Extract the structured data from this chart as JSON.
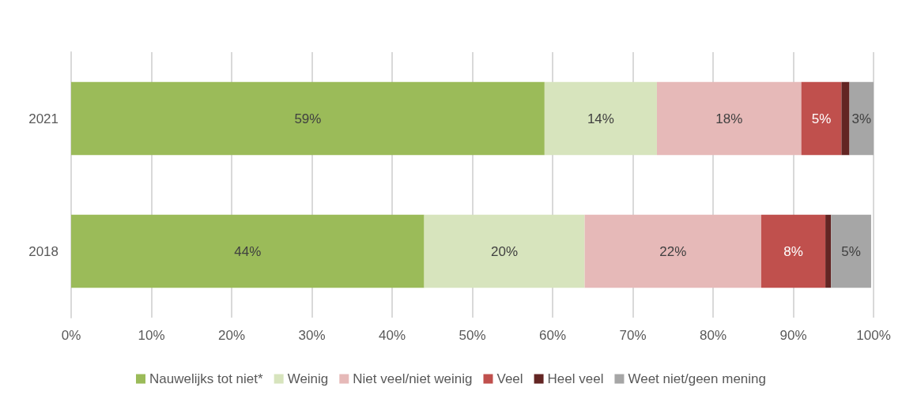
{
  "chart_data": {
    "type": "bar",
    "orientation": "horizontal",
    "stacked": true,
    "categories": [
      "2021",
      "2018"
    ],
    "series": [
      {
        "name": "Nauwelijks tot niet*",
        "color": "#9bbb59",
        "values": [
          59,
          44
        ],
        "value_labels": [
          "59%",
          "44%"
        ]
      },
      {
        "name": "Weinig",
        "color": "#d7e4bd",
        "values": [
          14,
          20
        ],
        "value_labels": [
          "14%",
          "20%"
        ]
      },
      {
        "name": "Niet veel/niet weinig",
        "color": "#e6b9b8",
        "values": [
          18,
          22
        ],
        "value_labels": [
          "18%",
          "22%"
        ]
      },
      {
        "name": "Veel",
        "color": "#c0504d",
        "values": [
          5,
          8
        ],
        "value_labels": [
          "5%",
          "8%"
        ]
      },
      {
        "name": "Heel veel",
        "color": "#632523",
        "values": [
          1,
          0.7
        ],
        "value_labels": [
          null,
          null
        ]
      },
      {
        "name": "Weet niet/geen mening",
        "color": "#a6a6a6",
        "values": [
          3,
          5
        ],
        "value_labels": [
          "3%",
          "5%"
        ]
      }
    ],
    "xlim": [
      0,
      100
    ],
    "xticks": [
      {
        "value": 0,
        "label": "0%"
      },
      {
        "value": 10,
        "label": "10%"
      },
      {
        "value": 20,
        "label": "20%"
      },
      {
        "value": 30,
        "label": "30%"
      },
      {
        "value": 40,
        "label": "40%"
      },
      {
        "value": 50,
        "label": "50%"
      },
      {
        "value": 60,
        "label": "60%"
      },
      {
        "value": 70,
        "label": "70%"
      },
      {
        "value": 80,
        "label": "80%"
      },
      {
        "value": 90,
        "label": "90%"
      },
      {
        "value": 100,
        "label": "100%"
      }
    ],
    "grid": "x",
    "legend": "bottom"
  }
}
